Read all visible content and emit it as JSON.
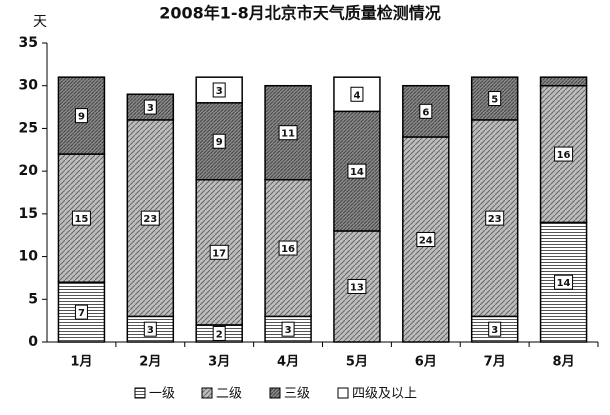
{
  "chart_data": {
    "type": "stacked-bar",
    "title": "2008年1-8月北京市天气质量检测情况",
    "y_label": "天",
    "categories": [
      "1月",
      "2月",
      "3月",
      "4月",
      "5月",
      "6月",
      "7月",
      "8月"
    ],
    "series": [
      {
        "name": "一级",
        "color": "#555555",
        "pattern": "horizontal",
        "values": [
          7,
          3,
          2,
          3,
          0,
          0,
          3,
          14
        ],
        "value_labels": [
          "7",
          "3",
          "2",
          "3",
          null,
          null,
          "3",
          "14"
        ]
      },
      {
        "name": "二级",
        "color": "#666666",
        "pattern": "diagonal",
        "values": [
          15,
          23,
          17,
          16,
          13,
          24,
          23,
          16
        ],
        "value_labels": [
          "15",
          "23",
          "17",
          "16",
          "13",
          "24",
          "23",
          "16"
        ]
      },
      {
        "name": "三级",
        "color": "#444444",
        "pattern": "diagonal-dense",
        "values": [
          9,
          3,
          9,
          11,
          14,
          6,
          5,
          1
        ],
        "value_labels": [
          "9",
          "3",
          "9",
          "11",
          "14",
          "6",
          "5",
          null
        ]
      },
      {
        "name": "四级及以上",
        "color": "#ffffff",
        "pattern": "none",
        "values": [
          0,
          0,
          3,
          0,
          4,
          0,
          0,
          0
        ],
        "value_labels": [
          null,
          null,
          "3",
          null,
          "4",
          null,
          null,
          null
        ]
      }
    ],
    "ylim": [
      0,
      35
    ],
    "yticks": [
      0,
      5,
      10,
      15,
      20,
      25,
      30,
      35
    ],
    "grid": false
  }
}
